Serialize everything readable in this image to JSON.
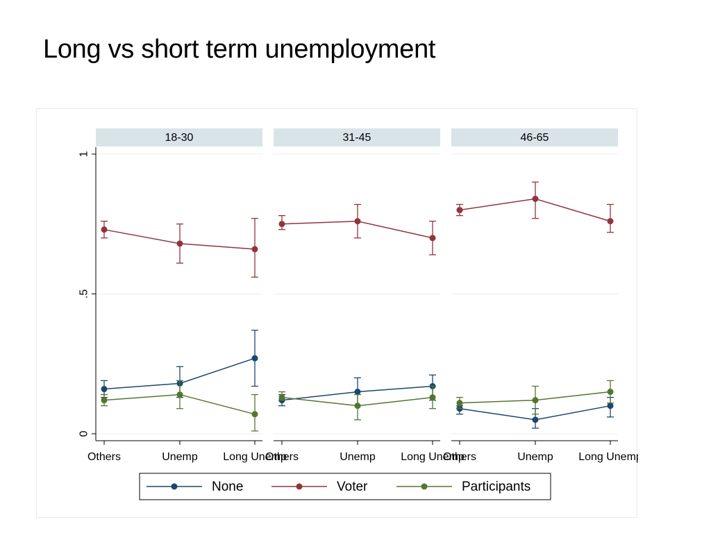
{
  "slide": {
    "title": "Long vs short term unemployment"
  },
  "colors": {
    "None": "#1a476f",
    "Voter": "#90353b",
    "Participants": "#55752f",
    "panel_header_bg": "#d9e4e8",
    "grid": "#e9eef0",
    "axis": "#000000"
  },
  "chart_data": {
    "type": "line",
    "categories": [
      "Others",
      "Unemp",
      "Long Unemp"
    ],
    "panels": [
      "18-30",
      "31-45",
      "46-65"
    ],
    "y_ticks": [
      {
        "value": 0,
        "label": "0"
      },
      {
        "value": 0.5,
        "label": ".5"
      },
      {
        "value": 1,
        "label": "1"
      }
    ],
    "ylim": [
      0,
      1
    ],
    "grid": true,
    "legend_position": "bottom",
    "error_bars": true,
    "series": [
      {
        "name": "None",
        "panels": [
          {
            "values": [
              0.16,
              0.18,
              0.27
            ],
            "lower": [
              0.13,
              0.13,
              0.17
            ],
            "upper": [
              0.19,
              0.24,
              0.37
            ]
          },
          {
            "values": [
              0.12,
              0.15,
              0.17
            ],
            "lower": [
              0.1,
              0.1,
              0.12
            ],
            "upper": [
              0.14,
              0.2,
              0.21
            ]
          },
          {
            "values": [
              0.09,
              0.05,
              0.1
            ],
            "lower": [
              0.07,
              0.02,
              0.06
            ],
            "upper": [
              0.1,
              0.09,
              0.13
            ]
          }
        ]
      },
      {
        "name": "Voter",
        "panels": [
          {
            "values": [
              0.73,
              0.68,
              0.66
            ],
            "lower": [
              0.7,
              0.61,
              0.56
            ],
            "upper": [
              0.76,
              0.75,
              0.77
            ]
          },
          {
            "values": [
              0.75,
              0.76,
              0.7
            ],
            "lower": [
              0.73,
              0.7,
              0.64
            ],
            "upper": [
              0.78,
              0.82,
              0.76
            ]
          },
          {
            "values": [
              0.8,
              0.84,
              0.76
            ],
            "lower": [
              0.78,
              0.77,
              0.72
            ],
            "upper": [
              0.82,
              0.9,
              0.82
            ]
          }
        ]
      },
      {
        "name": "Participants",
        "panels": [
          {
            "values": [
              0.12,
              0.14,
              0.07
            ],
            "lower": [
              0.1,
              0.09,
              0.01
            ],
            "upper": [
              0.14,
              0.19,
              0.14
            ]
          },
          {
            "values": [
              0.13,
              0.1,
              0.13
            ],
            "lower": [
              0.12,
              0.05,
              0.09
            ],
            "upper": [
              0.15,
              0.14,
              0.17
            ]
          },
          {
            "values": [
              0.11,
              0.12,
              0.15
            ],
            "lower": [
              0.09,
              0.07,
              0.11
            ],
            "upper": [
              0.13,
              0.17,
              0.19
            ]
          }
        ]
      }
    ]
  }
}
